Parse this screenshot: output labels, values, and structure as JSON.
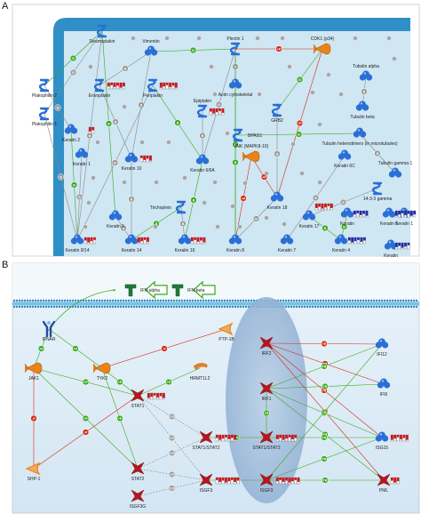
{
  "panels": [
    {
      "letter": "A",
      "nodes": [
        {
          "id": "desmoplakin",
          "label": "Desmoplakin",
          "shape": "helix"
        },
        {
          "id": "vimentin",
          "label": "Vimentin",
          "shape": "cloud"
        },
        {
          "id": "plectin1",
          "label": "Plectin 1",
          "shape": "helix"
        },
        {
          "id": "cdk1",
          "label": "CDK1 (p34)",
          "shape": "kinase"
        },
        {
          "id": "tubulin_alpha",
          "label": "Tubulin alpha",
          "shape": "cloud"
        },
        {
          "id": "plakophilin2",
          "label": "Plakophilin 2",
          "shape": "helix"
        },
        {
          "id": "envoplakin",
          "label": "Envoplakin",
          "shape": "helix"
        },
        {
          "id": "periplakin",
          "label": "Periplakin",
          "shape": "helix"
        },
        {
          "id": "actin",
          "label": "Actin cytoskeletal",
          "shape": "cloud"
        },
        {
          "id": "tubulin_beta",
          "label": "Tubulin beta",
          "shape": "cloud"
        },
        {
          "id": "plakophilin1",
          "label": "Plakophilin 1",
          "shape": "helix"
        },
        {
          "id": "grb2",
          "label": "GRB2",
          "shape": "helix"
        },
        {
          "id": "keratin2",
          "label": "Keratin 2",
          "shape": "cloud"
        },
        {
          "id": "keratin1",
          "label": "Keratin 1",
          "shape": "cloud"
        },
        {
          "id": "keratin10",
          "label": "Keratin 10",
          "shape": "cloud"
        },
        {
          "id": "epiplakin",
          "label": "Epiplakin",
          "shape": "helix"
        },
        {
          "id": "bpag1",
          "label": "BPAG1",
          "shape": "helix"
        },
        {
          "id": "tubulin_hetero",
          "label": "Tubulin heterodimers (in microtubules)",
          "shape": "cloud"
        },
        {
          "id": "keratin6",
          "label": "Keratin 6/6A",
          "shape": "cloud"
        },
        {
          "id": "jnk",
          "label": "JNK (MAPK8-10)",
          "shape": "kinase"
        },
        {
          "id": "keratin5",
          "label": "Keratin 5",
          "shape": "cloud"
        },
        {
          "id": "tubulin_gamma",
          "label": "Tubulin gamma 1",
          "shape": "cloud"
        },
        {
          "id": "keratin6c",
          "label": "Keratin 6C",
          "shape": "cloud"
        },
        {
          "id": "trichoplein",
          "label": "Trichoplein",
          "shape": "helix"
        },
        {
          "id": "keratin18",
          "label": "Keratin 18",
          "shape": "cloud"
        },
        {
          "id": "protein1433",
          "label": "14-3-3 gamma",
          "shape": "helix"
        },
        {
          "id": "keratin17",
          "label": "Keratin 17",
          "shape": "cloud"
        },
        {
          "id": "keratin19",
          "label": "Keratin",
          "shape": "cloud"
        },
        {
          "id": "keratin5b",
          "label": "Keratin 5",
          "shape": "cloud"
        },
        {
          "id": "keratin9",
          "label": "Keratin 9/14",
          "shape": "cloud"
        },
        {
          "id": "keratin14",
          "label": "Keratin 14",
          "shape": "cloud"
        },
        {
          "id": "keratin16",
          "label": "Keratin 16",
          "shape": "cloud"
        },
        {
          "id": "keratin8",
          "label": "Keratin 8",
          "shape": "cloud"
        },
        {
          "id": "keratin7",
          "label": "Keratin 7",
          "shape": "cloud"
        },
        {
          "id": "keratin4",
          "label": "Keratin 4",
          "shape": "cloud"
        },
        {
          "id": "keratinx",
          "label": "Keratin",
          "shape": "cloud"
        },
        {
          "id": "keratin1b",
          "label": "Keratin 1",
          "shape": "cloud"
        }
      ]
    },
    {
      "letter": "B",
      "nodes": [
        {
          "id": "ifn_alpha",
          "label": "IFN-alpha",
          "shape": "ligand"
        },
        {
          "id": "ifn_beta",
          "label": "IFN-beta",
          "shape": "ligand"
        },
        {
          "id": "ifnar",
          "label": "IFNAR",
          "shape": "receptor"
        },
        {
          "id": "ptp1b",
          "label": "PTP-1B",
          "shape": "phosphatase"
        },
        {
          "id": "jak1",
          "label": "JAK1",
          "shape": "kinase"
        },
        {
          "id": "tyk2",
          "label": "TYK2",
          "shape": "kinase"
        },
        {
          "id": "hrmt1l2",
          "label": "HRMT1L2",
          "shape": "enzyme"
        },
        {
          "id": "irf2",
          "label": "IRF2",
          "shape": "tf"
        },
        {
          "id": "ifi12",
          "label": "IFI12",
          "shape": "cloud"
        },
        {
          "id": "irf1",
          "label": "IRF1",
          "shape": "tf"
        },
        {
          "id": "ifi6",
          "label": "IFI6",
          "shape": "cloud"
        },
        {
          "id": "stat1",
          "label": "STAT1",
          "shape": "tf"
        },
        {
          "id": "stat1stat2",
          "label": "STAT1/STAT2",
          "shape": "tf"
        },
        {
          "id": "stat1stat2n",
          "label": "STAT1/STAT2",
          "shape": "tf"
        },
        {
          "id": "isg15",
          "label": "ISG15",
          "shape": "cloud"
        },
        {
          "id": "shp1",
          "label": "SHP-1",
          "shape": "phosphatase"
        },
        {
          "id": "stat2",
          "label": "STAT2",
          "shape": "tf"
        },
        {
          "id": "isgf3",
          "label": "ISGF3",
          "shape": "tf"
        },
        {
          "id": "isgf3n",
          "label": "ISGF3",
          "shape": "tf"
        },
        {
          "id": "pml",
          "label": "PML",
          "shape": "tf"
        },
        {
          "id": "isgf3g",
          "label": "ISGF3G",
          "shape": "tf"
        }
      ]
    }
  ],
  "colors": {
    "node_blue": "#2a6fd6",
    "node_red": "#b8161d",
    "kinase_orange": "#e8841a",
    "ligand_green": "#1f7a3a",
    "badge_green": "#3aaa1e",
    "badge_red": "#d62a14",
    "badge_grey": "#9a9a9a",
    "membrane_a": "#2f8fc6",
    "cell_fill": "#cfe6f3",
    "bar_red": "#d4141c",
    "bar_blue": "#1e2aa8"
  }
}
